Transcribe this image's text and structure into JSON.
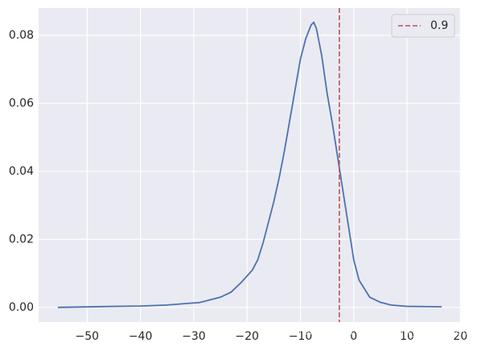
{
  "chart_data": {
    "type": "line",
    "x": [
      -55.5,
      -45,
      -40,
      -35,
      -31,
      -29,
      -27,
      -25,
      -23,
      -21,
      -19,
      -18,
      -17,
      -16,
      -15,
      -14,
      -13,
      -12,
      -11,
      -10,
      -9,
      -8,
      -7.5,
      -7,
      -6,
      -5,
      -4,
      -3,
      -2,
      -1,
      0,
      1,
      2,
      3,
      5,
      7,
      10,
      16.5
    ],
    "series": [
      {
        "color": "#4c72b0",
        "values": [
          0,
          0.0003,
          0.0004,
          0.0007,
          0.0012,
          0.0014,
          0.0022,
          0.003,
          0.0045,
          0.0075,
          0.011,
          0.014,
          0.019,
          0.025,
          0.031,
          0.038,
          0.046,
          0.055,
          0.064,
          0.073,
          0.079,
          0.083,
          0.0838,
          0.082,
          0.074,
          0.063,
          0.054,
          0.044,
          0.034,
          0.024,
          0.014,
          0.008,
          0.0055,
          0.003,
          0.0015,
          0.0007,
          0.0003,
          0.0002
        ]
      }
    ],
    "vline": {
      "name": "0.9",
      "value": -2.7,
      "color": "#c44e52"
    },
    "xlim": [
      -59.1,
      20.1
    ],
    "ylim": [
      -0.0043,
      0.088
    ],
    "xticks": [
      {
        "value": -50,
        "label": "−50"
      },
      {
        "value": -40,
        "label": "−40"
      },
      {
        "value": -30,
        "label": "−30"
      },
      {
        "value": -20,
        "label": "−20"
      },
      {
        "value": -10,
        "label": "−10"
      },
      0,
      10,
      20
    ],
    "yticks": [
      {
        "value": 0,
        "label": "0.00"
      },
      {
        "value": 0.02,
        "label": "0.02"
      },
      {
        "value": 0.04,
        "label": "0.04"
      },
      {
        "value": 0.06,
        "label": "0.06"
      },
      {
        "value": 0.08,
        "label": "0.08"
      }
    ],
    "grid": true,
    "legend": "upper right",
    "watermark": "https://blog.csdn.net/weixin_43831480"
  }
}
